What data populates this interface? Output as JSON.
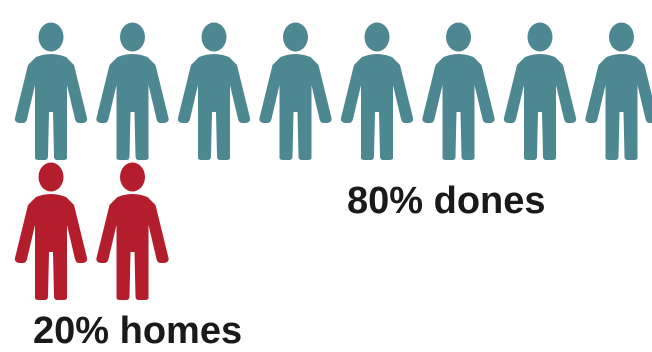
{
  "chart_data": {
    "type": "pictogram",
    "categories": [
      "dones",
      "homes"
    ],
    "values": [
      80,
      20
    ],
    "unit": "%",
    "icon": "person-icon",
    "icon_counts": [
      8,
      2
    ],
    "labels": [
      "80% dones",
      "20% homes"
    ],
    "colors": [
      "#4d8791",
      "#b31d2c"
    ],
    "title": "",
    "legend": "none",
    "grid": false
  }
}
